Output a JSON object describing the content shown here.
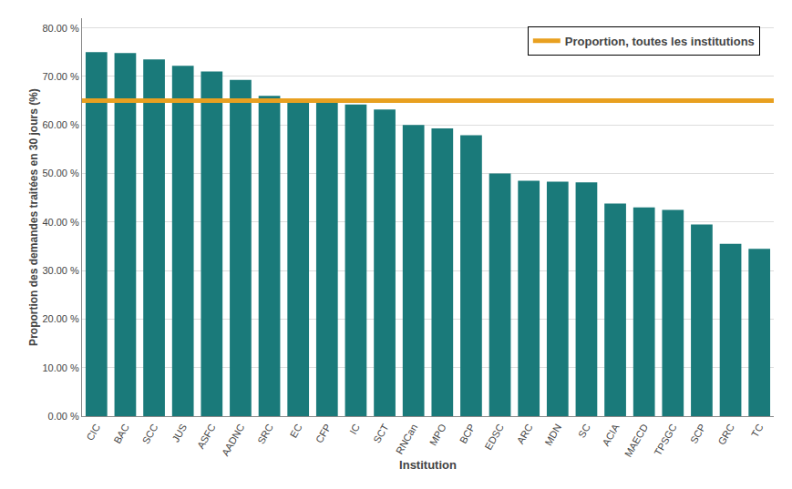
{
  "chart_data": {
    "type": "bar",
    "categories": [
      "CIC",
      "BAC",
      "SCC",
      "JUS",
      "ASFC",
      "AADNC",
      "SRC",
      "EC",
      "CFP",
      "IC",
      "SCT",
      "RNCan",
      "MPO",
      "BCP",
      "EDSC",
      "ARC",
      "MDN",
      "SC",
      "ACIA",
      "MAECD",
      "TPSGC",
      "SCP",
      "GRC",
      "TC"
    ],
    "values": [
      75.0,
      74.8,
      73.5,
      72.2,
      71.0,
      69.3,
      66.0,
      65.5,
      65.3,
      64.2,
      63.2,
      60.0,
      59.3,
      57.9,
      50.0,
      48.5,
      48.3,
      48.2,
      43.8,
      43.0,
      42.5,
      39.5,
      35.5,
      34.5
    ],
    "color": "#1a7a7a",
    "reference_line": {
      "value": 65.0,
      "label": "Proportion, toutes les institutions",
      "color": "#E8A020"
    },
    "xlabel": "Institution",
    "ylabel": "Proportion des demandes traitées en 30 jours (%)",
    "ylim": [
      0,
      82
    ],
    "yticks": [
      {
        "value": 0,
        "label": "0.00 %"
      },
      {
        "value": 10,
        "label": "10.00 %"
      },
      {
        "value": 20,
        "label": "20.00 %"
      },
      {
        "value": 30,
        "label": "30.00 %"
      },
      {
        "value": 40,
        "label": "40.00 %"
      },
      {
        "value": 50,
        "label": "50.00 %"
      },
      {
        "value": 60,
        "label": "60.00 %"
      },
      {
        "value": 70,
        "label": "70.00 %"
      },
      {
        "value": 80,
        "label": "80.00 %"
      }
    ],
    "grid": true,
    "legend": "upper right"
  }
}
